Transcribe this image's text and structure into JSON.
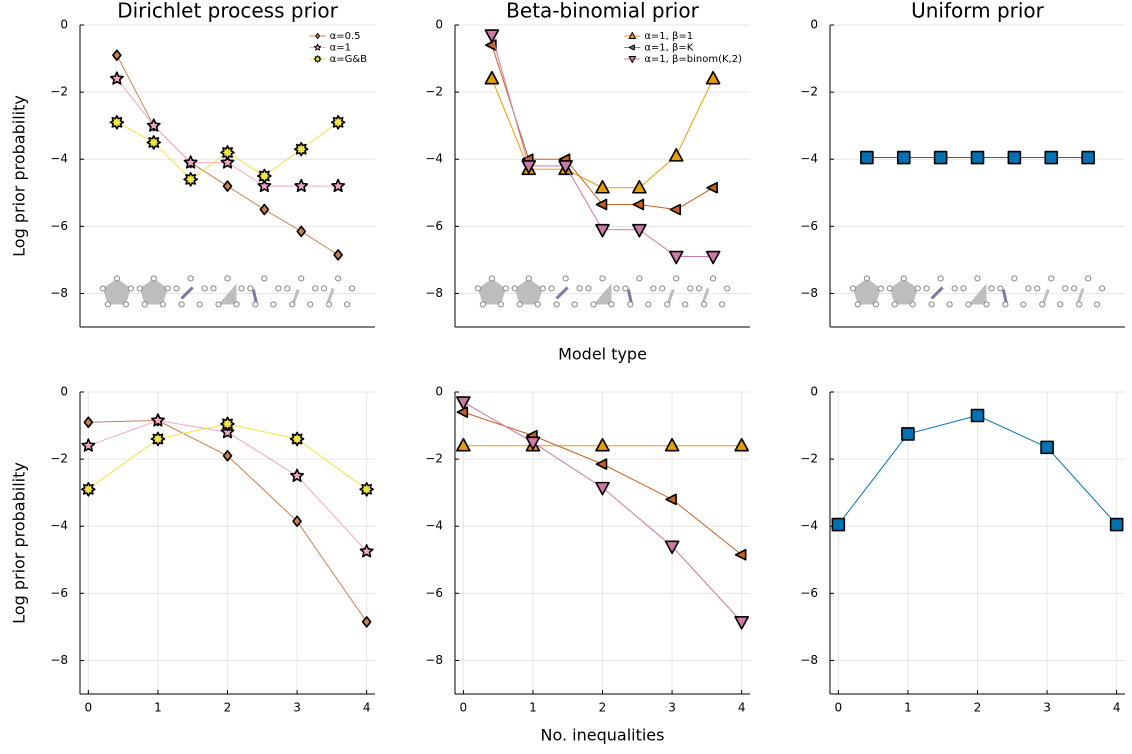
{
  "chart_data": [
    {
      "type": "line",
      "title": "Dirichlet process prior",
      "ylabel": "Log prior probability",
      "categories": [
        null,
        null,
        null,
        null,
        null,
        null,
        null
      ],
      "ylim": [
        -9,
        0
      ],
      "yticks": [
        0,
        {
          "value": -2,
          "label": "−2"
        },
        {
          "value": -4,
          "label": "−4"
        },
        {
          "value": -6,
          "label": "−6"
        },
        {
          "value": -8,
          "label": "−8"
        }
      ],
      "grid": true,
      "legend": "top right",
      "series": [
        {
          "name": "α=0.5",
          "color": "#c8804f",
          "marker": "diamond",
          "values": [
            -0.9,
            -3.0,
            -4.1,
            -4.8,
            -5.5,
            -6.15,
            -6.85
          ]
        },
        {
          "name": "α=1",
          "color": "#f2a7c9",
          "marker": "star5",
          "values": [
            -1.6,
            -3.0,
            -4.1,
            -4.1,
            -4.8,
            -4.8,
            -4.8
          ]
        },
        {
          "name": "α=G&B",
          "color": "#f0e442",
          "marker": "star8",
          "values": [
            -2.9,
            -3.5,
            -4.6,
            -3.8,
            -4.5,
            -3.7,
            -2.9
          ]
        }
      ]
    },
    {
      "type": "line",
      "title": "Beta-binomial prior",
      "xlabel": "Model type",
      "categories": [
        null,
        null,
        null,
        null,
        null,
        null,
        null
      ],
      "ylim": [
        -9,
        0
      ],
      "yticks": [
        0,
        {
          "value": -2,
          "label": "−2"
        },
        {
          "value": -4,
          "label": "−4"
        },
        {
          "value": -6,
          "label": "−6"
        },
        {
          "value": -8,
          "label": "−8"
        }
      ],
      "grid": true,
      "legend": "top right",
      "series": [
        {
          "name": "α=1, β=1",
          "color": "#e69f00",
          "marker": "utriangle",
          "values": [
            -1.6,
            -4.3,
            -4.3,
            -4.85,
            -4.85,
            -3.9,
            -1.6
          ]
        },
        {
          "name": "α=1, β=K",
          "color": "#c8621c",
          "marker": "ltriangle",
          "values": [
            -0.6,
            -4.0,
            -4.0,
            -5.35,
            -5.35,
            -5.5,
            -4.85
          ]
        },
        {
          "name": "α=1, β=binom(K,2)",
          "color": "#cc79a7",
          "marker": "dtriangle",
          "values": [
            -0.3,
            -4.2,
            -4.2,
            -6.1,
            -6.1,
            -6.9,
            -6.9
          ]
        }
      ]
    },
    {
      "type": "line",
      "title": "Uniform prior",
      "categories": [
        null,
        null,
        null,
        null,
        null,
        null,
        null
      ],
      "ylim": [
        -9,
        0
      ],
      "yticks": [
        0,
        {
          "value": -2,
          "label": "−2"
        },
        {
          "value": -4,
          "label": "−4"
        },
        {
          "value": -6,
          "label": "−6"
        },
        {
          "value": -8,
          "label": "−8"
        }
      ],
      "grid": true,
      "series": [
        {
          "color": "#0072b2",
          "marker": "square",
          "values": [
            -3.95,
            -3.95,
            -3.95,
            -3.95,
            -3.95,
            -3.95,
            -3.95
          ]
        }
      ]
    },
    {
      "type": "line",
      "ylabel": "Log prior probability",
      "x": [
        0,
        1,
        2,
        3,
        4
      ],
      "xlim": [
        -0.12,
        4.12
      ],
      "xticks": [
        0,
        1,
        2,
        3,
        4
      ],
      "ylim": [
        -9,
        0
      ],
      "yticks": [
        0,
        {
          "value": -2,
          "label": "−2"
        },
        {
          "value": -4,
          "label": "−4"
        },
        {
          "value": -6,
          "label": "−6"
        },
        {
          "value": -8,
          "label": "−8"
        }
      ],
      "grid": true,
      "series": [
        {
          "color": "#c8804f",
          "marker": "diamond",
          "values": [
            -0.9,
            -0.85,
            -1.9,
            -3.85,
            -6.85
          ]
        },
        {
          "color": "#f2a7c9",
          "marker": "star5",
          "values": [
            -1.6,
            -0.85,
            -1.2,
            -2.5,
            -4.75
          ]
        },
        {
          "color": "#f0e442",
          "marker": "star8",
          "values": [
            -2.9,
            -1.4,
            -0.95,
            -1.4,
            -2.9
          ]
        }
      ]
    },
    {
      "type": "line",
      "xlabel": "No. inequalities",
      "x": [
        0,
        1,
        2,
        3,
        4
      ],
      "xlim": [
        -0.12,
        4.12
      ],
      "xticks": [
        0,
        1,
        2,
        3,
        4
      ],
      "ylim": [
        -9,
        0
      ],
      "yticks": [
        0,
        {
          "value": -2,
          "label": "−2"
        },
        {
          "value": -4,
          "label": "−4"
        },
        {
          "value": -6,
          "label": "−6"
        },
        {
          "value": -8,
          "label": "−8"
        }
      ],
      "grid": true,
      "series": [
        {
          "color": "#e69f00",
          "marker": "utriangle",
          "values": [
            -1.6,
            -1.6,
            -1.6,
            -1.6,
            -1.6
          ]
        },
        {
          "color": "#c8621c",
          "marker": "ltriangle",
          "values": [
            -0.6,
            -1.3,
            -2.15,
            -3.2,
            -4.85
          ]
        },
        {
          "color": "#cc79a7",
          "marker": "dtriangle",
          "values": [
            -0.3,
            -1.5,
            -2.85,
            -4.6,
            -6.85
          ]
        }
      ]
    },
    {
      "type": "line",
      "x": [
        0,
        1,
        2,
        3,
        4
      ],
      "xlim": [
        -0.12,
        4.12
      ],
      "xticks": [
        0,
        1,
        2,
        3,
        4
      ],
      "ylim": [
        -9,
        0
      ],
      "yticks": [
        0,
        {
          "value": -2,
          "label": "−2"
        },
        {
          "value": -4,
          "label": "−4"
        },
        {
          "value": -6,
          "label": "−6"
        },
        {
          "value": -8,
          "label": "−8"
        }
      ],
      "grid": true,
      "series": [
        {
          "color": "#0072b2",
          "marker": "square",
          "values": [
            -3.95,
            -1.25,
            -0.7,
            -1.65,
            -3.95
          ]
        }
      ]
    }
  ]
}
